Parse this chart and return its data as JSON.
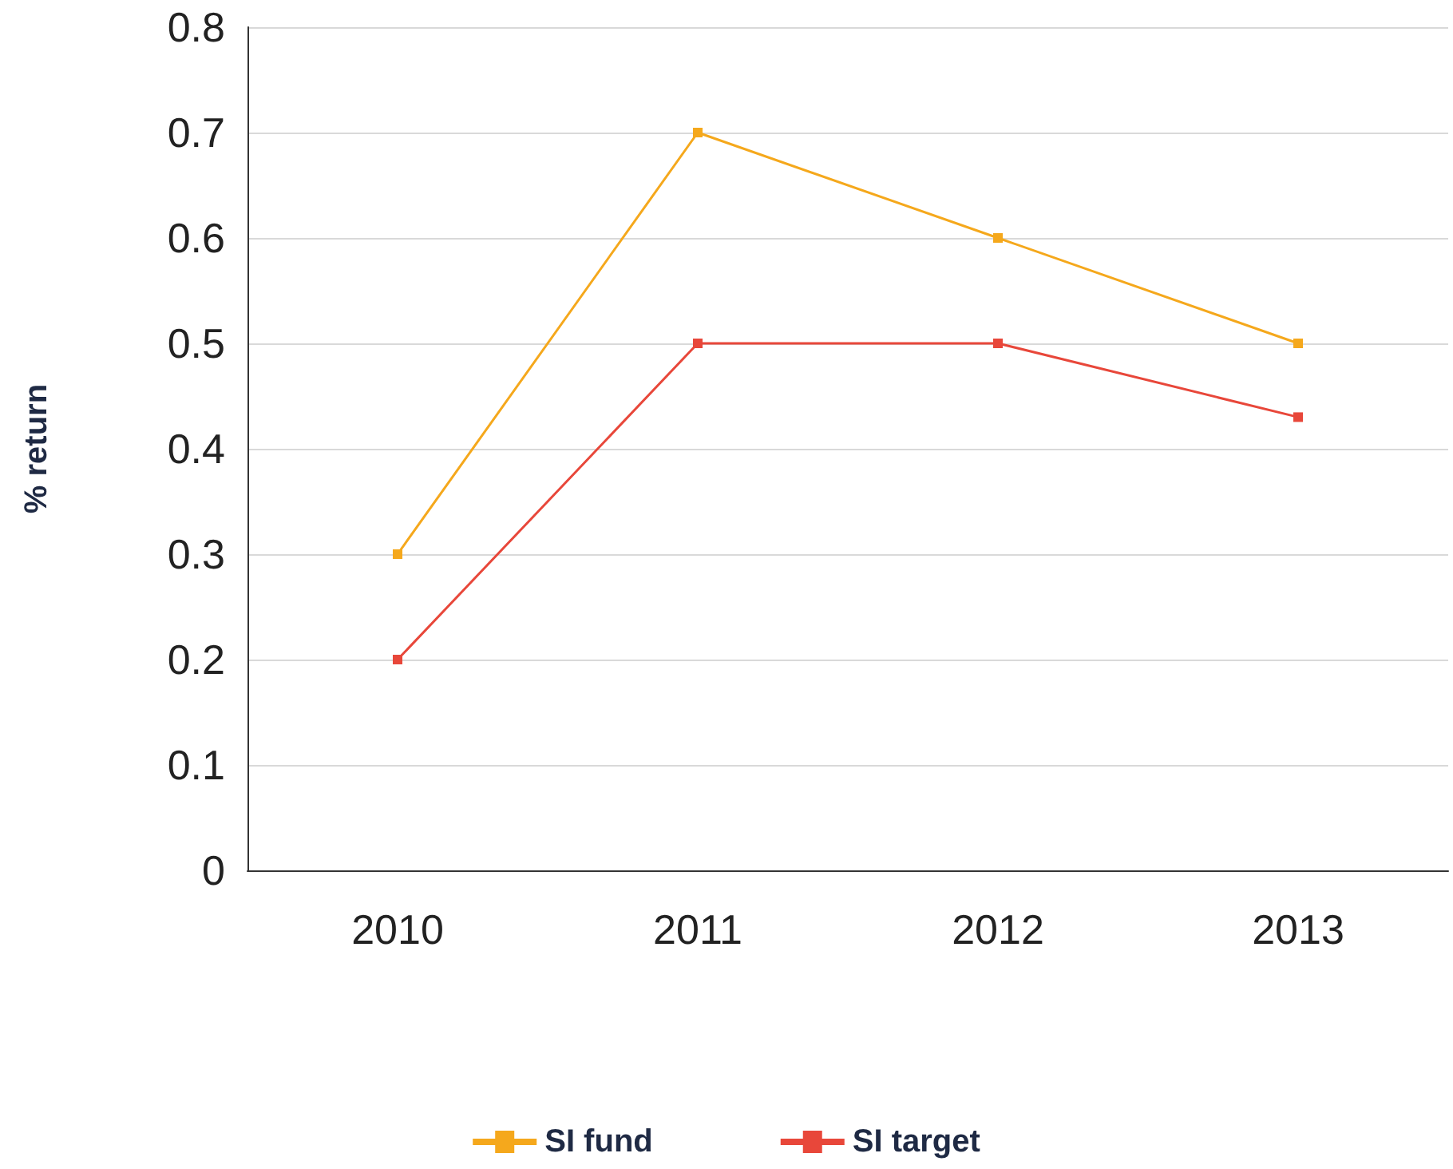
{
  "chart_data": {
    "type": "line",
    "ylabel": "% return",
    "categories": [
      "2010",
      "2011",
      "2012",
      "2013"
    ],
    "series": [
      {
        "name": "SI fund",
        "color": "#f5a81c",
        "values": [
          0.3,
          0.7,
          0.6,
          0.5
        ]
      },
      {
        "name": "SI target",
        "color": "#e8473a",
        "values": [
          0.2,
          0.5,
          0.5,
          0.43
        ]
      }
    ],
    "ylim": [
      0,
      0.8
    ],
    "yticks": [
      0,
      0.1,
      0.2,
      0.3,
      0.4,
      0.5,
      0.6,
      0.7,
      0.8
    ],
    "grid": "y",
    "legend": "bottom",
    "marker": "square",
    "line_style": "solid"
  }
}
